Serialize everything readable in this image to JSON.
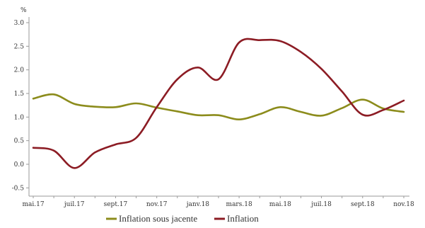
{
  "chart_data": {
    "type": "line",
    "unit_label": "%",
    "x_labels": [
      "mai.17",
      "juil.17",
      "sept.17",
      "nov.17",
      "janv.18",
      "mars.18",
      "mai.18",
      "juil.18",
      "sept.18",
      "nov.18"
    ],
    "y_ticks": [
      "3.0",
      "2.5",
      "2.0",
      "1.5",
      "1.0",
      "0.5",
      "0.0",
      "-0.5"
    ],
    "ylim": [
      -0.55,
      3.05
    ],
    "grid": false,
    "legend_position": "bottom",
    "series": [
      {
        "name": "Inflation sous jacente",
        "color": "#8c8c1c",
        "points": [
          [
            "2017-05",
            1.39
          ],
          [
            "2017-06",
            1.48
          ],
          [
            "2017-07",
            1.28
          ],
          [
            "2017-08",
            1.22
          ],
          [
            "2017-09",
            1.21
          ],
          [
            "2017-10",
            1.29
          ],
          [
            "2017-11",
            1.2
          ],
          [
            "2017-12",
            1.12
          ],
          [
            "2018-01",
            1.04
          ],
          [
            "2018-02",
            1.04
          ],
          [
            "2018-03",
            0.95
          ],
          [
            "2018-04",
            1.06
          ],
          [
            "2018-05",
            1.21
          ],
          [
            "2018-06",
            1.11
          ],
          [
            "2018-07",
            1.03
          ],
          [
            "2018-08",
            1.19
          ],
          [
            "2018-09",
            1.37
          ],
          [
            "2018-10",
            1.18
          ],
          [
            "2018-11",
            1.11
          ]
        ]
      },
      {
        "name": "Inflation",
        "color": "#8c1c24",
        "points": [
          [
            "2017-05",
            0.35
          ],
          [
            "2017-06",
            0.29
          ],
          [
            "2017-07",
            -0.08
          ],
          [
            "2017-08",
            0.25
          ],
          [
            "2017-09",
            0.42
          ],
          [
            "2017-10",
            0.56
          ],
          [
            "2017-11",
            1.21
          ],
          [
            "2017-12",
            1.8
          ],
          [
            "2018-01",
            2.05
          ],
          [
            "2018-02",
            1.8
          ],
          [
            "2018-03",
            2.58
          ],
          [
            "2018-04",
            2.63
          ],
          [
            "2018-05",
            2.61
          ],
          [
            "2018-06",
            2.38
          ],
          [
            "2018-07",
            2.02
          ],
          [
            "2018-08",
            1.54
          ],
          [
            "2018-09",
            1.05
          ],
          [
            "2018-10",
            1.15
          ],
          [
            "2018-11",
            1.35
          ]
        ]
      }
    ]
  }
}
